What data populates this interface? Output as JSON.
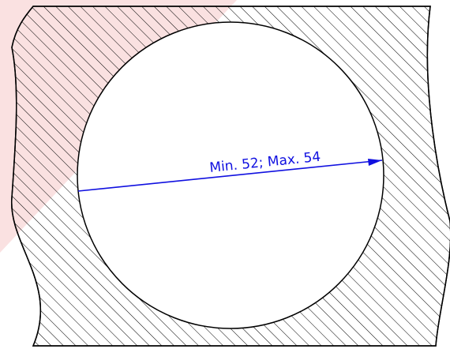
{
  "drawing": {
    "dimension_label": "Min. 52; Max. 54",
    "colors": {
      "outline": "#000000",
      "hatch": "#000000",
      "dimension": "#1010e0",
      "watermark": "#f4b8b8",
      "background": "#ffffff"
    }
  }
}
